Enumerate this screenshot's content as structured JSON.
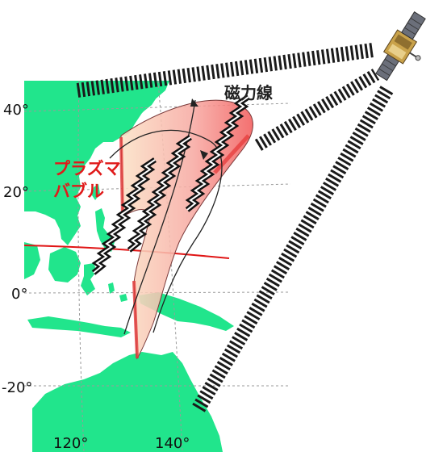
{
  "labels": {
    "field_line": "磁力線",
    "bubble_line1": "プラズマ",
    "bubble_line2": "バブル"
  },
  "axes": {
    "latitudes": [
      "40°",
      "20°",
      "0°",
      "-20°"
    ],
    "longitudes": [
      "120°",
      "140°"
    ]
  },
  "colors": {
    "land": "#21e58c",
    "bubble_fill": "#f46a6a",
    "bubble_edge": "#e53b3b",
    "equator": "#e01515",
    "signal": "#1a1a1a",
    "grid": "#9a9a9a"
  },
  "icons": {
    "satellite": "satellite-icon",
    "signal_beams": "signal-beam-icon",
    "wave": "wave-icon"
  }
}
